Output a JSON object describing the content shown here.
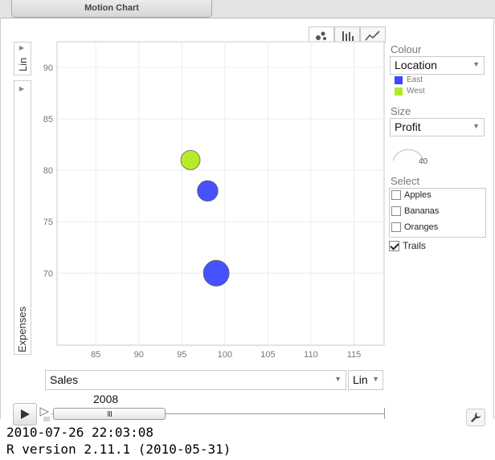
{
  "tab": {
    "title": "Motion Chart"
  },
  "chart_types": [
    {
      "name": "bubble-icon",
      "active": true
    },
    {
      "name": "bar-chart-icon",
      "active": false
    },
    {
      "name": "line-chart-icon",
      "active": false
    }
  ],
  "y_axis": {
    "variable": "Expenses",
    "scale": "Lin"
  },
  "x_axis": {
    "variable": "Sales",
    "scale": "Lin"
  },
  "colour": {
    "label": "Colour",
    "value": "Location",
    "legend": [
      {
        "label": "East",
        "color": "#3b49ff"
      },
      {
        "label": "West",
        "color": "#b3ea1f"
      }
    ]
  },
  "size": {
    "label": "Size",
    "value": "Profit",
    "max_label": "40"
  },
  "select": {
    "label": "Select",
    "items": [
      {
        "label": "Apples",
        "checked": false
      },
      {
        "label": "Bananas",
        "checked": false
      },
      {
        "label": "Oranges",
        "checked": false
      }
    ],
    "trails": {
      "label": "Trails",
      "checked": true
    }
  },
  "timeline": {
    "year": "2008"
  },
  "console": {
    "line1": "2010-07-26 22:03:08",
    "line2": "R version 2.11.1 (2010-05-31)"
  },
  "chart_data": {
    "type": "scatter",
    "title": "",
    "xlabel": "Sales",
    "ylabel": "Expenses",
    "xlim": [
      80.5,
      118.5
    ],
    "ylim": [
      63,
      92.5
    ],
    "xticks": [
      85,
      90,
      95,
      100,
      105,
      110,
      115
    ],
    "yticks": [
      70,
      75,
      80,
      85,
      90
    ],
    "grid": true,
    "points": [
      {
        "x": 96,
        "y": 81,
        "size": 30,
        "location": "West",
        "color": "#b3ea1f"
      },
      {
        "x": 98,
        "y": 78,
        "size": 32,
        "location": "East",
        "color": "#3b49ff"
      },
      {
        "x": 99,
        "y": 70,
        "size": 40,
        "location": "East",
        "color": "#3b49ff"
      }
    ]
  }
}
